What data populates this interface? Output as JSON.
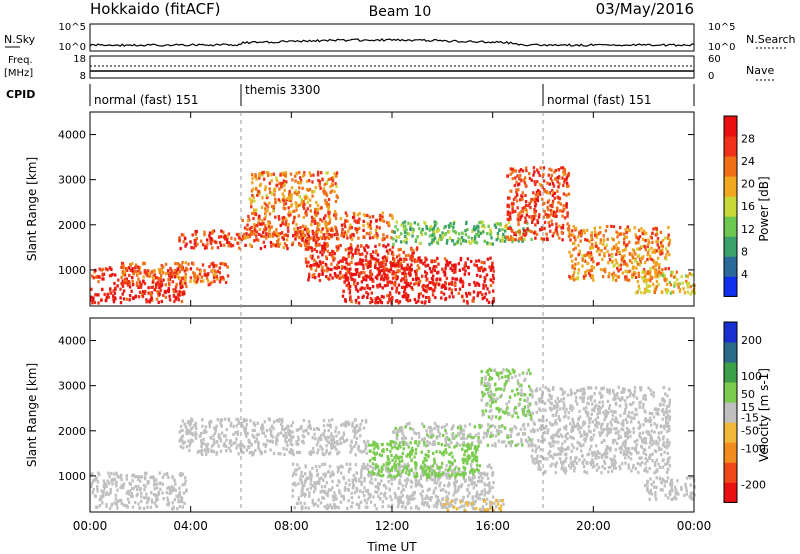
{
  "header": {
    "title_left": "Hokkaido (fitACF)",
    "title_center": "Beam 10",
    "title_right": "03/May/2016"
  },
  "strip_panels": {
    "nsky_label": "N.Sky",
    "nsearch_label": "N.Search",
    "nsky_ticks": [
      "10^5",
      "10^0"
    ],
    "nsearch_ticks": [
      "10^5",
      "10^0"
    ],
    "freq_label_1": "Freq.",
    "freq_label_2": "[MHz]",
    "freq_ticks": [
      "18",
      "8"
    ],
    "nave_label": "Nave",
    "nave_ticks": [
      "60",
      "0"
    ],
    "cpid_label": "CPID",
    "cpid_segments": [
      {
        "label": "normal (fast) 151",
        "start_hour": 0
      },
      {
        "label": "themis 3300",
        "start_hour": 6
      },
      {
        "label": "normal (fast) 151",
        "start_hour": 18
      }
    ]
  },
  "x_axis": {
    "label": "Time UT",
    "range_hours": [
      0,
      24
    ],
    "ticks": [
      {
        "hour": 0,
        "label": "00:00"
      },
      {
        "hour": 4,
        "label": "04:00"
      },
      {
        "hour": 8,
        "label": "08:00"
      },
      {
        "hour": 12,
        "label": "12:00"
      },
      {
        "hour": 16,
        "label": "16:00"
      },
      {
        "hour": 20,
        "label": "20:00"
      },
      {
        "hour": 24,
        "label": "00:00"
      }
    ]
  },
  "colors": {
    "power_scale": [
      "#1030ee",
      "#2a6a9a",
      "#3aa16a",
      "#6cc850",
      "#c8d838",
      "#f0a820",
      "#f07018",
      "#f03018",
      "#e81010"
    ],
    "velocity_scale": [
      "#e81010",
      "#f04818",
      "#f08c20",
      "#f0b838",
      "#c0c0c0",
      "#7ccc50",
      "#3ca048",
      "#2a6a8a",
      "#1830d0"
    ],
    "ground_scatter": "#c0c0c0"
  },
  "chart_data": [
    {
      "type": "heatmap",
      "panel": "power",
      "ylabel": "Slant Range [km]",
      "ylim": [
        200,
        4500
      ],
      "yticks": [
        1000,
        2000,
        3000,
        4000
      ],
      "xlim": [
        0,
        24
      ],
      "colorbar": {
        "label": "Power [dB]",
        "range": [
          0,
          32
        ],
        "ticks": [
          {
            "value": 4,
            "label": "4"
          },
          {
            "value": 8,
            "label": "8"
          },
          {
            "value": 12,
            "label": "12"
          },
          {
            "value": 16,
            "label": "16"
          },
          {
            "value": 20,
            "label": "20"
          },
          {
            "value": 24,
            "label": "24"
          },
          {
            "value": 28,
            "label": "28"
          }
        ]
      },
      "features": [
        {
          "t0": 0.0,
          "t1": 3.8,
          "r0": 300,
          "r1": 1100,
          "value": 28
        },
        {
          "t0": 1.2,
          "t1": 5.5,
          "r0": 700,
          "r1": 1200,
          "value": 24
        },
        {
          "t0": 3.5,
          "t1": 9.5,
          "r0": 1500,
          "r1": 1900,
          "value": 26
        },
        {
          "t0": 6.0,
          "t1": 12.0,
          "r0": 1700,
          "r1": 2300,
          "value": 24
        },
        {
          "t0": 6.3,
          "t1": 9.8,
          "r0": 2300,
          "r1": 3200,
          "value": 22
        },
        {
          "t0": 10.0,
          "t1": 16.0,
          "r0": 300,
          "r1": 1300,
          "value": 29
        },
        {
          "t0": 8.5,
          "t1": 13.0,
          "r0": 800,
          "r1": 1600,
          "value": 27
        },
        {
          "t0": 12.0,
          "t1": 17.5,
          "r0": 1600,
          "r1": 2100,
          "value": 12
        },
        {
          "t0": 16.5,
          "t1": 19.0,
          "r0": 1700,
          "r1": 3300,
          "value": 26
        },
        {
          "t0": 19.0,
          "t1": 23.0,
          "r0": 800,
          "r1": 2000,
          "value": 22
        },
        {
          "t0": 21.5,
          "t1": 24.0,
          "r0": 500,
          "r1": 1000,
          "value": 18
        }
      ]
    },
    {
      "type": "heatmap",
      "panel": "velocity",
      "ylabel": "Slant Range [km]",
      "ylim": [
        200,
        4500
      ],
      "yticks": [
        1000,
        2000,
        3000,
        4000
      ],
      "xlim": [
        0,
        24
      ],
      "colorbar": {
        "label": "Velocity [m s-1]",
        "range": [
          -250,
          250
        ],
        "ticks": [
          {
            "value": -200,
            "label": "-200"
          },
          {
            "value": -100,
            "label": "-100"
          },
          {
            "value": -50,
            "label": "-50"
          },
          {
            "value": -15,
            "label": "-15"
          },
          {
            "value": 15,
            "label": "15"
          },
          {
            "value": 50,
            "label": "50"
          },
          {
            "value": 100,
            "label": "100"
          },
          {
            "value": 200,
            "label": "200"
          }
        ]
      },
      "features": [
        {
          "t0": 0.0,
          "t1": 3.8,
          "r0": 300,
          "r1": 1100,
          "value": 0
        },
        {
          "t0": 3.5,
          "t1": 11.0,
          "r0": 1500,
          "r1": 2300,
          "value": 0
        },
        {
          "t0": 8.0,
          "t1": 16.0,
          "r0": 300,
          "r1": 1300,
          "value": 0
        },
        {
          "t0": 11.0,
          "t1": 15.5,
          "r0": 1000,
          "r1": 1800,
          "value": 60
        },
        {
          "t0": 12.0,
          "t1": 17.5,
          "r0": 1700,
          "r1": 2200,
          "value": 20
        },
        {
          "t0": 15.5,
          "t1": 17.5,
          "r0": 2300,
          "r1": 3400,
          "value": 30
        },
        {
          "t0": 17.5,
          "t1": 23.0,
          "r0": 1100,
          "r1": 3000,
          "value": 0
        },
        {
          "t0": 14.0,
          "t1": 16.5,
          "r0": 250,
          "r1": 500,
          "value": -30
        },
        {
          "t0": 22.0,
          "t1": 24.0,
          "r0": 500,
          "r1": 1000,
          "value": 0
        }
      ]
    }
  ]
}
